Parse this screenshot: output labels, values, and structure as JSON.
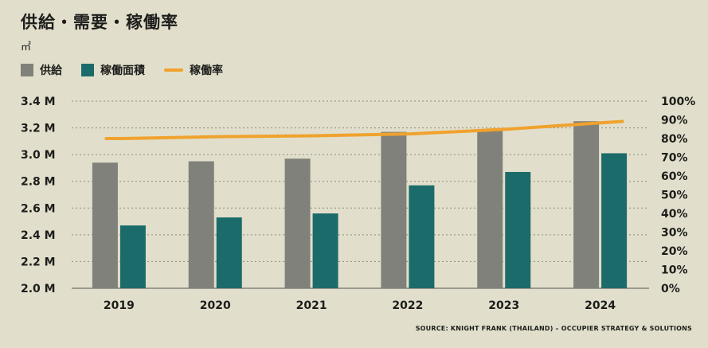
{
  "chart_data": {
    "type": "bar",
    "title": "供給・需要・稼働率",
    "unit_label": "㎡",
    "categories": [
      "2019",
      "2020",
      "2021",
      "2022",
      "2023",
      "2024"
    ],
    "series": [
      {
        "name": "供給",
        "kind": "bar",
        "axis": "left",
        "color": "#81817b",
        "values": [
          2.94,
          2.95,
          2.97,
          3.17,
          3.19,
          3.25
        ]
      },
      {
        "name": "稼働面積",
        "kind": "bar",
        "axis": "left",
        "color": "#1c6b6b",
        "values": [
          2.47,
          2.53,
          2.56,
          2.77,
          2.87,
          3.01
        ]
      },
      {
        "name": "稼働率",
        "kind": "line",
        "axis": "right",
        "color": "#f0a22e",
        "values": [
          80,
          81,
          81.5,
          82.5,
          85,
          88.5
        ]
      }
    ],
    "y_left": {
      "min": 2.0,
      "max": 3.4,
      "step": 0.2,
      "tick_labels": [
        "2.0 M",
        "2.2 M",
        "2.4 M",
        "2.6 M",
        "2.8 M",
        "3.0 M",
        "3.2 M",
        "3.4 M"
      ]
    },
    "y_right": {
      "min": 0,
      "max": 100,
      "step": 10,
      "tick_labels": [
        "0%",
        "10%",
        "20%",
        "30%",
        "40%",
        "50%",
        "60%",
        "70%",
        "80%",
        "90%",
        "100%"
      ]
    },
    "grid": true,
    "legend_position": "top-left",
    "source": "SOURCE: KNIGHT FRANK (THAILAND) – OCCUPIER STRATEGY & SOLUTIONS"
  }
}
